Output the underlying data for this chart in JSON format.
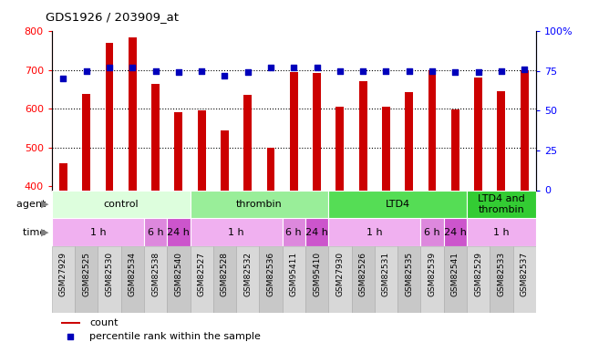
{
  "title": "GDS1926 / 203909_at",
  "samples": [
    "GSM27929",
    "GSM82525",
    "GSM82530",
    "GSM82534",
    "GSM82538",
    "GSM82540",
    "GSM82527",
    "GSM82528",
    "GSM82532",
    "GSM82536",
    "GSM95411",
    "GSM95410",
    "GSM27930",
    "GSM82526",
    "GSM82531",
    "GSM82535",
    "GSM82539",
    "GSM82541",
    "GSM82529",
    "GSM82533",
    "GSM82537"
  ],
  "counts": [
    460,
    638,
    770,
    785,
    663,
    590,
    595,
    545,
    635,
    500,
    695,
    693,
    605,
    670,
    605,
    643,
    700,
    597,
    680,
    645,
    700
  ],
  "percentiles": [
    70,
    75,
    77,
    77,
    75,
    74,
    75,
    72,
    74,
    77,
    77,
    77,
    75,
    75,
    75,
    75,
    75,
    74,
    74,
    75,
    76
  ],
  "ylim_left": [
    390,
    800
  ],
  "ylim_right": [
    0,
    100
  ],
  "yticks_left": [
    400,
    500,
    600,
    700,
    800
  ],
  "yticks_right": [
    0,
    25,
    50,
    75,
    100
  ],
  "bar_color": "#cc0000",
  "dot_color": "#0000bb",
  "agent_groups": [
    {
      "label": "control",
      "start": 0,
      "end": 6,
      "color": "#ddfedd"
    },
    {
      "label": "thrombin",
      "start": 6,
      "end": 12,
      "color": "#99ee99"
    },
    {
      "label": "LTD4",
      "start": 12,
      "end": 18,
      "color": "#55dd55"
    },
    {
      "label": "LTD4 and\nthrombin",
      "start": 18,
      "end": 21,
      "color": "#33cc33"
    }
  ],
  "time_groups": [
    {
      "label": "1 h",
      "start": 0,
      "end": 4,
      "color": "#f0b0f0"
    },
    {
      "label": "6 h",
      "start": 4,
      "end": 5,
      "color": "#dd88dd"
    },
    {
      "label": "24 h",
      "start": 5,
      "end": 6,
      "color": "#cc55cc"
    },
    {
      "label": "1 h",
      "start": 6,
      "end": 10,
      "color": "#f0b0f0"
    },
    {
      "label": "6 h",
      "start": 10,
      "end": 11,
      "color": "#dd88dd"
    },
    {
      "label": "24 h",
      "start": 11,
      "end": 12,
      "color": "#cc55cc"
    },
    {
      "label": "1 h",
      "start": 12,
      "end": 16,
      "color": "#f0b0f0"
    },
    {
      "label": "6 h",
      "start": 16,
      "end": 17,
      "color": "#dd88dd"
    },
    {
      "label": "24 h",
      "start": 17,
      "end": 18,
      "color": "#cc55cc"
    },
    {
      "label": "1 h",
      "start": 18,
      "end": 21,
      "color": "#f0b0f0"
    }
  ],
  "legend_count_label": "count",
  "legend_pct_label": "percentile rank within the sample"
}
